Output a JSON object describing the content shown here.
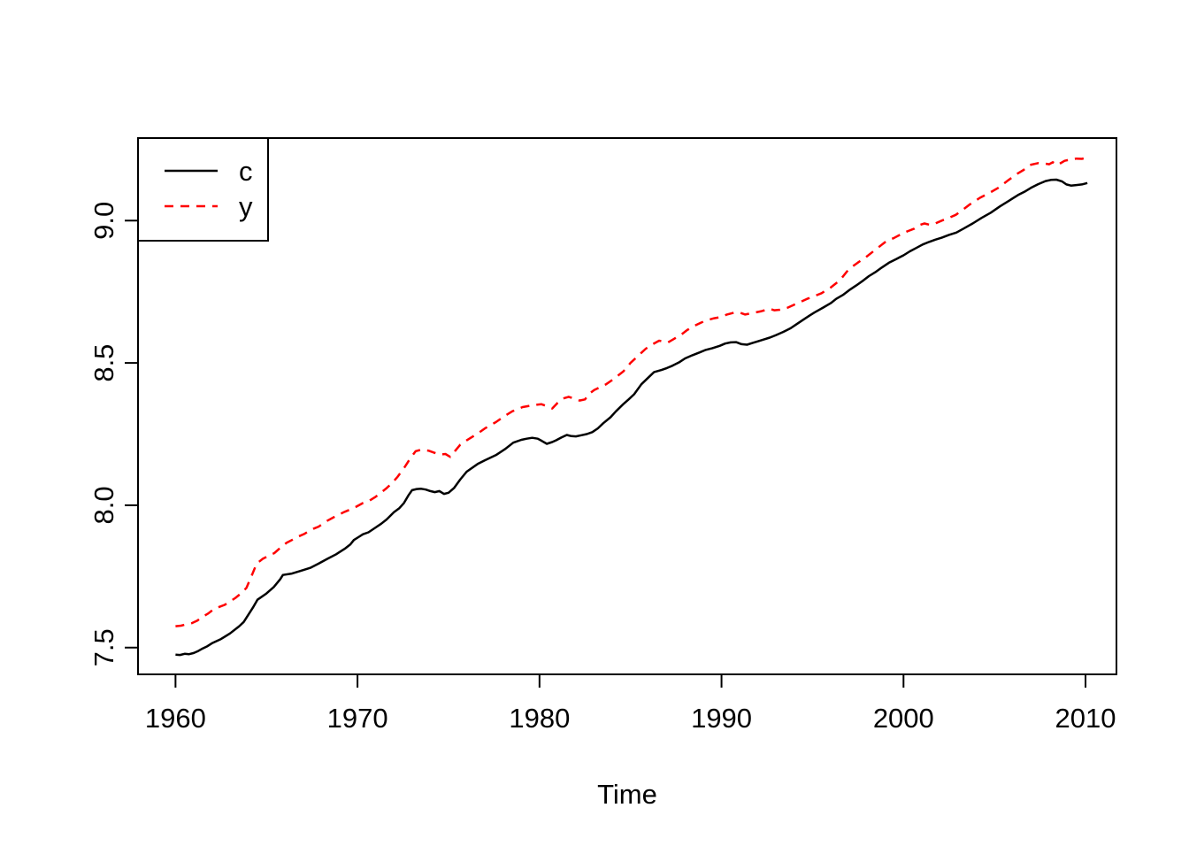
{
  "figure": {
    "background_color": "#ffffff",
    "foreground_color": "#000000",
    "accent_color": "#ff0000"
  },
  "chart_data": {
    "type": "line",
    "title": "",
    "xlabel": "Time",
    "ylabel": "",
    "xlim": [
      1957.94,
      2011.7
    ],
    "ylim": [
      7.406,
      9.29
    ],
    "grid": false,
    "x_ticks": [
      1960,
      1970,
      1980,
      1990,
      2000,
      2010
    ],
    "x_tick_labels": [
      "1960",
      "1970",
      "1980",
      "1990",
      "2000",
      "2010"
    ],
    "y_ticks": [
      7.5,
      8.0,
      8.5,
      9.0
    ],
    "y_tick_labels": [
      "7.5",
      "8.0",
      "8.5",
      "9.0"
    ],
    "legend": {
      "position": "topleft",
      "entries": [
        {
          "label": "c",
          "color": "#000000",
          "line_style": "solid"
        },
        {
          "label": "y",
          "color": "#ff0000",
          "line_style": "dashed"
        }
      ]
    },
    "series": [
      {
        "name": "c",
        "color": "#000000",
        "line_style": "solid",
        "points": [
          [
            1960.0,
            7.475
          ],
          [
            1960.25,
            7.474
          ],
          [
            1960.5,
            7.478
          ],
          [
            1960.75,
            7.477
          ],
          [
            1961.0,
            7.481
          ],
          [
            1961.25,
            7.488
          ],
          [
            1961.5,
            7.497
          ],
          [
            1961.75,
            7.505
          ],
          [
            1962.0,
            7.515
          ],
          [
            1962.5,
            7.53
          ],
          [
            1963.0,
            7.55
          ],
          [
            1963.5,
            7.575
          ],
          [
            1963.75,
            7.59
          ],
          [
            1964.25,
            7.64
          ],
          [
            1964.5,
            7.668
          ],
          [
            1965.0,
            7.69
          ],
          [
            1965.4,
            7.713
          ],
          [
            1965.75,
            7.74
          ],
          [
            1965.9,
            7.755
          ],
          [
            1966.4,
            7.76
          ],
          [
            1966.9,
            7.77
          ],
          [
            1967.4,
            7.78
          ],
          [
            1967.86,
            7.795
          ],
          [
            1968.35,
            7.812
          ],
          [
            1968.83,
            7.828
          ],
          [
            1969.3,
            7.847
          ],
          [
            1969.6,
            7.862
          ],
          [
            1969.8,
            7.878
          ],
          [
            1970.05,
            7.888
          ],
          [
            1970.3,
            7.898
          ],
          [
            1970.6,
            7.905
          ],
          [
            1971.0,
            7.922
          ],
          [
            1971.3,
            7.935
          ],
          [
            1971.6,
            7.95
          ],
          [
            1972.0,
            7.976
          ],
          [
            1972.3,
            7.99
          ],
          [
            1972.55,
            8.008
          ],
          [
            1972.8,
            8.035
          ],
          [
            1973.0,
            8.053
          ],
          [
            1973.25,
            8.057
          ],
          [
            1973.5,
            8.058
          ],
          [
            1973.75,
            8.055
          ],
          [
            1974.0,
            8.05
          ],
          [
            1974.25,
            8.046
          ],
          [
            1974.5,
            8.05
          ],
          [
            1974.75,
            8.04
          ],
          [
            1975.0,
            8.044
          ],
          [
            1975.3,
            8.06
          ],
          [
            1975.64,
            8.09
          ],
          [
            1976.0,
            8.118
          ],
          [
            1976.6,
            8.145
          ],
          [
            1977.0,
            8.158
          ],
          [
            1977.6,
            8.176
          ],
          [
            1978.1,
            8.197
          ],
          [
            1978.56,
            8.22
          ],
          [
            1979.0,
            8.23
          ],
          [
            1979.3,
            8.234
          ],
          [
            1979.6,
            8.237
          ],
          [
            1979.9,
            8.234
          ],
          [
            1980.1,
            8.227
          ],
          [
            1980.4,
            8.216
          ],
          [
            1980.7,
            8.222
          ],
          [
            1980.9,
            8.228
          ],
          [
            1981.2,
            8.238
          ],
          [
            1981.5,
            8.247
          ],
          [
            1981.75,
            8.243
          ],
          [
            1982.0,
            8.242
          ],
          [
            1982.3,
            8.246
          ],
          [
            1982.6,
            8.25
          ],
          [
            1982.9,
            8.257
          ],
          [
            1983.2,
            8.27
          ],
          [
            1983.5,
            8.288
          ],
          [
            1983.9,
            8.309
          ],
          [
            1984.2,
            8.33
          ],
          [
            1984.6,
            8.355
          ],
          [
            1984.9,
            8.372
          ],
          [
            1985.2,
            8.39
          ],
          [
            1985.6,
            8.425
          ],
          [
            1986.0,
            8.45
          ],
          [
            1986.3,
            8.468
          ],
          [
            1986.7,
            8.475
          ],
          [
            1987.0,
            8.482
          ],
          [
            1987.3,
            8.49
          ],
          [
            1987.7,
            8.503
          ],
          [
            1988.0,
            8.516
          ],
          [
            1988.4,
            8.527
          ],
          [
            1988.8,
            8.537
          ],
          [
            1989.1,
            8.545
          ],
          [
            1989.5,
            8.552
          ],
          [
            1989.9,
            8.56
          ],
          [
            1990.2,
            8.568
          ],
          [
            1990.5,
            8.572
          ],
          [
            1990.8,
            8.573
          ],
          [
            1991.1,
            8.566
          ],
          [
            1991.4,
            8.564
          ],
          [
            1991.7,
            8.57
          ],
          [
            1992.0,
            8.576
          ],
          [
            1992.35,
            8.583
          ],
          [
            1992.65,
            8.589
          ],
          [
            1993.0,
            8.598
          ],
          [
            1993.4,
            8.609
          ],
          [
            1993.8,
            8.622
          ],
          [
            1994.1,
            8.635
          ],
          [
            1994.5,
            8.652
          ],
          [
            1994.85,
            8.667
          ],
          [
            1995.1,
            8.677
          ],
          [
            1995.6,
            8.695
          ],
          [
            1996.0,
            8.71
          ],
          [
            1996.3,
            8.725
          ],
          [
            1996.7,
            8.74
          ],
          [
            1997.0,
            8.755
          ],
          [
            1997.4,
            8.772
          ],
          [
            1997.8,
            8.79
          ],
          [
            1998.1,
            8.805
          ],
          [
            1998.5,
            8.821
          ],
          [
            1998.8,
            8.835
          ],
          [
            1999.2,
            8.852
          ],
          [
            1999.6,
            8.865
          ],
          [
            2000.0,
            8.878
          ],
          [
            2000.35,
            8.892
          ],
          [
            2000.7,
            8.904
          ],
          [
            2001.05,
            8.916
          ],
          [
            2001.4,
            8.925
          ],
          [
            2001.75,
            8.933
          ],
          [
            2002.1,
            8.94
          ],
          [
            2002.5,
            8.95
          ],
          [
            2002.9,
            8.958
          ],
          [
            2003.3,
            8.972
          ],
          [
            2003.8,
            8.99
          ],
          [
            2004.3,
            9.01
          ],
          [
            2004.8,
            9.028
          ],
          [
            2005.3,
            9.05
          ],
          [
            2005.8,
            9.07
          ],
          [
            2006.3,
            9.09
          ],
          [
            2006.7,
            9.103
          ],
          [
            2007.0,
            9.115
          ],
          [
            2007.4,
            9.128
          ],
          [
            2007.8,
            9.139
          ],
          [
            2008.1,
            9.143
          ],
          [
            2008.4,
            9.144
          ],
          [
            2008.7,
            9.138
          ],
          [
            2008.95,
            9.127
          ],
          [
            2009.2,
            9.123
          ],
          [
            2009.5,
            9.125
          ],
          [
            2009.8,
            9.127
          ],
          [
            2010.1,
            9.132
          ]
        ]
      },
      {
        "name": "y",
        "color": "#ff0000",
        "line_style": "dashed",
        "points": [
          [
            1960.0,
            7.575
          ],
          [
            1960.3,
            7.577
          ],
          [
            1960.6,
            7.582
          ],
          [
            1960.9,
            7.586
          ],
          [
            1961.2,
            7.595
          ],
          [
            1961.5,
            7.608
          ],
          [
            1961.8,
            7.62
          ],
          [
            1962.1,
            7.635
          ],
          [
            1962.4,
            7.643
          ],
          [
            1962.7,
            7.65
          ],
          [
            1963.0,
            7.662
          ],
          [
            1963.3,
            7.675
          ],
          [
            1963.6,
            7.69
          ],
          [
            1963.9,
            7.71
          ],
          [
            1964.2,
            7.755
          ],
          [
            1964.46,
            7.795
          ],
          [
            1964.8,
            7.812
          ],
          [
            1965.1,
            7.822
          ],
          [
            1965.43,
            7.832
          ],
          [
            1965.75,
            7.85
          ],
          [
            1966.1,
            7.868
          ],
          [
            1966.4,
            7.878
          ],
          [
            1966.75,
            7.89
          ],
          [
            1967.1,
            7.9
          ],
          [
            1967.4,
            7.912
          ],
          [
            1967.6,
            7.918
          ],
          [
            1967.86,
            7.925
          ],
          [
            1968.1,
            7.935
          ],
          [
            1968.35,
            7.946
          ],
          [
            1968.7,
            7.958
          ],
          [
            1969.0,
            7.968
          ],
          [
            1969.3,
            7.977
          ],
          [
            1969.6,
            7.985
          ],
          [
            1969.9,
            7.994
          ],
          [
            1970.3,
            8.008
          ],
          [
            1970.65,
            8.016
          ],
          [
            1971.0,
            8.03
          ],
          [
            1971.3,
            8.045
          ],
          [
            1971.6,
            8.06
          ],
          [
            1971.9,
            8.078
          ],
          [
            1972.2,
            8.1
          ],
          [
            1972.55,
            8.13
          ],
          [
            1972.9,
            8.165
          ],
          [
            1973.2,
            8.19
          ],
          [
            1973.5,
            8.195
          ],
          [
            1973.9,
            8.192
          ],
          [
            1974.2,
            8.185
          ],
          [
            1974.5,
            8.178
          ],
          [
            1974.83,
            8.18
          ],
          [
            1975.1,
            8.17
          ],
          [
            1975.35,
            8.19
          ],
          [
            1975.64,
            8.212
          ],
          [
            1976.0,
            8.228
          ],
          [
            1976.6,
            8.252
          ],
          [
            1977.0,
            8.27
          ],
          [
            1977.6,
            8.292
          ],
          [
            1978.1,
            8.314
          ],
          [
            1978.5,
            8.33
          ],
          [
            1979.07,
            8.345
          ],
          [
            1979.5,
            8.35
          ],
          [
            1979.8,
            8.353
          ],
          [
            1980.1,
            8.355
          ],
          [
            1980.4,
            8.348
          ],
          [
            1980.7,
            8.34
          ],
          [
            1981.0,
            8.36
          ],
          [
            1981.3,
            8.375
          ],
          [
            1981.6,
            8.381
          ],
          [
            1981.9,
            8.375
          ],
          [
            1982.2,
            8.368
          ],
          [
            1982.5,
            8.372
          ],
          [
            1982.7,
            8.39
          ],
          [
            1983.0,
            8.405
          ],
          [
            1983.66,
            8.425
          ],
          [
            1984.0,
            8.44
          ],
          [
            1984.6,
            8.47
          ],
          [
            1985.0,
            8.5
          ],
          [
            1985.5,
            8.53
          ],
          [
            1985.84,
            8.55
          ],
          [
            1986.2,
            8.565
          ],
          [
            1986.57,
            8.578
          ],
          [
            1986.8,
            8.576
          ],
          [
            1987.06,
            8.572
          ],
          [
            1987.4,
            8.585
          ],
          [
            1987.8,
            8.6
          ],
          [
            1988.1,
            8.615
          ],
          [
            1988.5,
            8.63
          ],
          [
            1988.9,
            8.642
          ],
          [
            1989.25,
            8.651
          ],
          [
            1989.6,
            8.657
          ],
          [
            1989.97,
            8.661
          ],
          [
            1990.3,
            8.67
          ],
          [
            1990.7,
            8.677
          ],
          [
            1991.0,
            8.677
          ],
          [
            1991.3,
            8.67
          ],
          [
            1991.6,
            8.674
          ],
          [
            1991.9,
            8.678
          ],
          [
            1992.2,
            8.682
          ],
          [
            1992.65,
            8.69
          ],
          [
            1992.9,
            8.685
          ],
          [
            1993.2,
            8.687
          ],
          [
            1993.6,
            8.693
          ],
          [
            1994.0,
            8.705
          ],
          [
            1994.3,
            8.713
          ],
          [
            1994.7,
            8.725
          ],
          [
            1995.08,
            8.734
          ],
          [
            1995.5,
            8.745
          ],
          [
            1996.0,
            8.765
          ],
          [
            1996.5,
            8.79
          ],
          [
            1997.0,
            8.83
          ],
          [
            1997.5,
            8.853
          ],
          [
            1997.9,
            8.87
          ],
          [
            1998.3,
            8.89
          ],
          [
            1998.7,
            8.91
          ],
          [
            1999.1,
            8.93
          ],
          [
            1999.45,
            8.938
          ],
          [
            1999.8,
            8.95
          ],
          [
            2000.2,
            8.962
          ],
          [
            2000.6,
            8.972
          ],
          [
            2000.9,
            8.985
          ],
          [
            2001.15,
            8.99
          ],
          [
            2001.45,
            8.985
          ],
          [
            2001.75,
            8.99
          ],
          [
            2002.1,
            9.0
          ],
          [
            2002.5,
            9.01
          ],
          [
            2002.87,
            9.02
          ],
          [
            2003.2,
            9.035
          ],
          [
            2003.6,
            9.055
          ],
          [
            2003.84,
            9.065
          ],
          [
            2004.2,
            9.08
          ],
          [
            2004.8,
            9.1
          ],
          [
            2005.2,
            9.115
          ],
          [
            2005.78,
            9.143
          ],
          [
            2006.26,
            9.165
          ],
          [
            2006.6,
            9.178
          ],
          [
            2006.9,
            9.195
          ],
          [
            2007.4,
            9.202
          ],
          [
            2007.8,
            9.2
          ],
          [
            2008.0,
            9.198
          ],
          [
            2008.2,
            9.205
          ],
          [
            2008.45,
            9.195
          ],
          [
            2008.85,
            9.21
          ],
          [
            2009.2,
            9.215
          ],
          [
            2009.5,
            9.218
          ],
          [
            2009.8,
            9.217
          ],
          [
            2010.1,
            9.222
          ]
        ]
      }
    ]
  }
}
